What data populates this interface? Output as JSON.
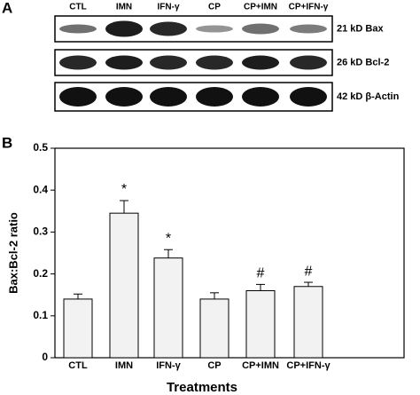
{
  "panel_a": {
    "label": "A",
    "lanes": [
      "CTL",
      "IMN",
      "IFN-γ",
      "CP",
      "CP+IMN",
      "CP+IFN-γ"
    ],
    "rows": [
      "21 kD Bax",
      "26 kD Bcl-2",
      "42 kD β-Actin"
    ]
  },
  "chart_data": {
    "type": "bar",
    "panel_label": "B",
    "x_label": "Treatments",
    "y_label": "Bax:Bcl-2 ratio",
    "categories": [
      "CTL",
      "IMN",
      "IFN-γ",
      "CP",
      "CP+IMN",
      "CP+IFN-γ"
    ],
    "values": [
      0.14,
      0.345,
      0.238,
      0.14,
      0.16,
      0.17
    ],
    "errors": [
      0.012,
      0.03,
      0.02,
      0.015,
      0.015,
      0.01
    ],
    "markers": [
      null,
      "*",
      "*",
      null,
      "#",
      "#"
    ],
    "color": "#f2f2f2",
    "ylim": [
      0,
      0.5
    ],
    "yticks": [
      0,
      0.1,
      0.2,
      0.3,
      0.4,
      0.5
    ]
  }
}
